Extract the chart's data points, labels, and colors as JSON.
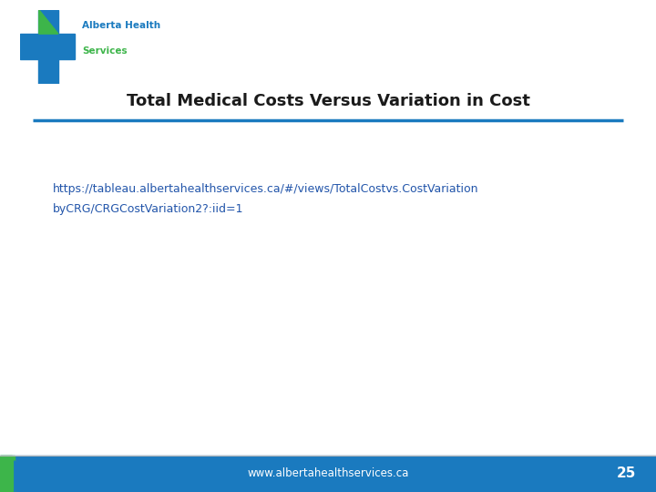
{
  "title": "Total Medical Costs Versus Variation in Cost",
  "link_line1": "https://tableau.albertahealthservices.ca/#/views/TotalCostvs.CostVariation",
  "link_line2": "byCRG/CRGCostVariation2?:iid=1",
  "footer_text": "www.albertahealthservices.ca",
  "page_number": "25",
  "bg_color": "#ffffff",
  "footer_bg_color": "#1a7abf",
  "footer_text_color": "#ffffff",
  "title_color": "#1a1a1a",
  "title_fontsize": 13,
  "link_color": "#2255aa",
  "link_fontsize": 9,
  "separator_color": "#1a7abf",
  "separator_linewidth": 2.5,
  "logo_blue": "#1a7abf",
  "logo_green": "#3db54a",
  "footer_left_green": "#3db54a",
  "footer_left_blue": "#1a7abf"
}
